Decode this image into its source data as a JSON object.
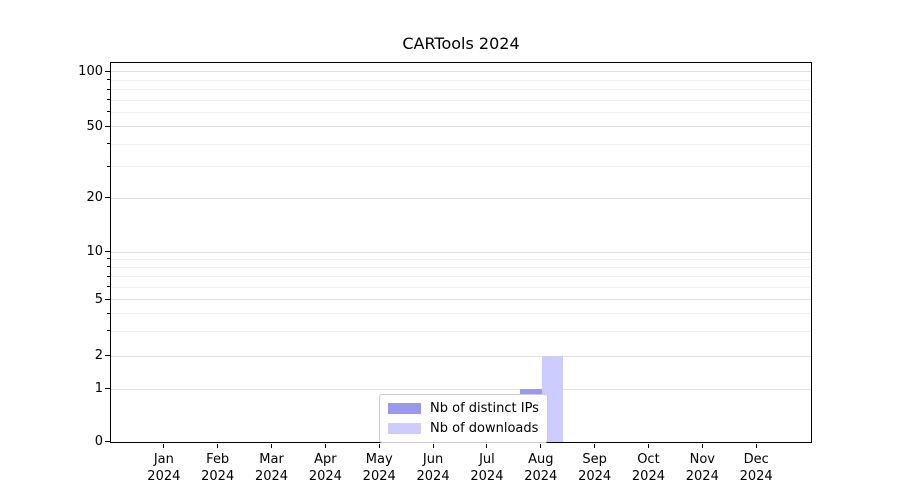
{
  "title": "CARTools 2024",
  "colors": {
    "background": "#ffffff",
    "axis": "#000000",
    "grid_major": "#e0e0e0",
    "grid_minor": "#efefef",
    "legend_border": "#cccccc",
    "bar_distinct_ips": "#9999ee",
    "bar_downloads": "#ccccff"
  },
  "chart_data": {
    "type": "bar",
    "title": "CARTools 2024",
    "categories": [
      "Jan 2024",
      "Feb 2024",
      "Mar 2024",
      "Apr 2024",
      "May 2024",
      "Jun 2024",
      "Jul 2024",
      "Aug 2024",
      "Sep 2024",
      "Oct 2024",
      "Nov 2024",
      "Dec 2024"
    ],
    "series": [
      {
        "name": "Nb of distinct IPs",
        "color": "#9999ee",
        "values": [
          0,
          0,
          0,
          0,
          0,
          0,
          0,
          1,
          0,
          0,
          0,
          0
        ]
      },
      {
        "name": "Nb of downloads",
        "color": "#ccccff",
        "values": [
          0,
          0,
          0,
          0,
          0,
          0,
          0,
          2,
          0,
          0,
          0,
          0
        ]
      }
    ],
    "xlabel": "",
    "ylabel": "",
    "yscale": "symlog",
    "ylim": [
      0,
      110
    ],
    "y_ticks": [
      0,
      1,
      2,
      5,
      10,
      20,
      50,
      100
    ],
    "y_minor_ticks": [
      3,
      4,
      6,
      7,
      8,
      9,
      30,
      40,
      60,
      70,
      80,
      90
    ],
    "grid": "both",
    "legend_position": "lower center"
  }
}
